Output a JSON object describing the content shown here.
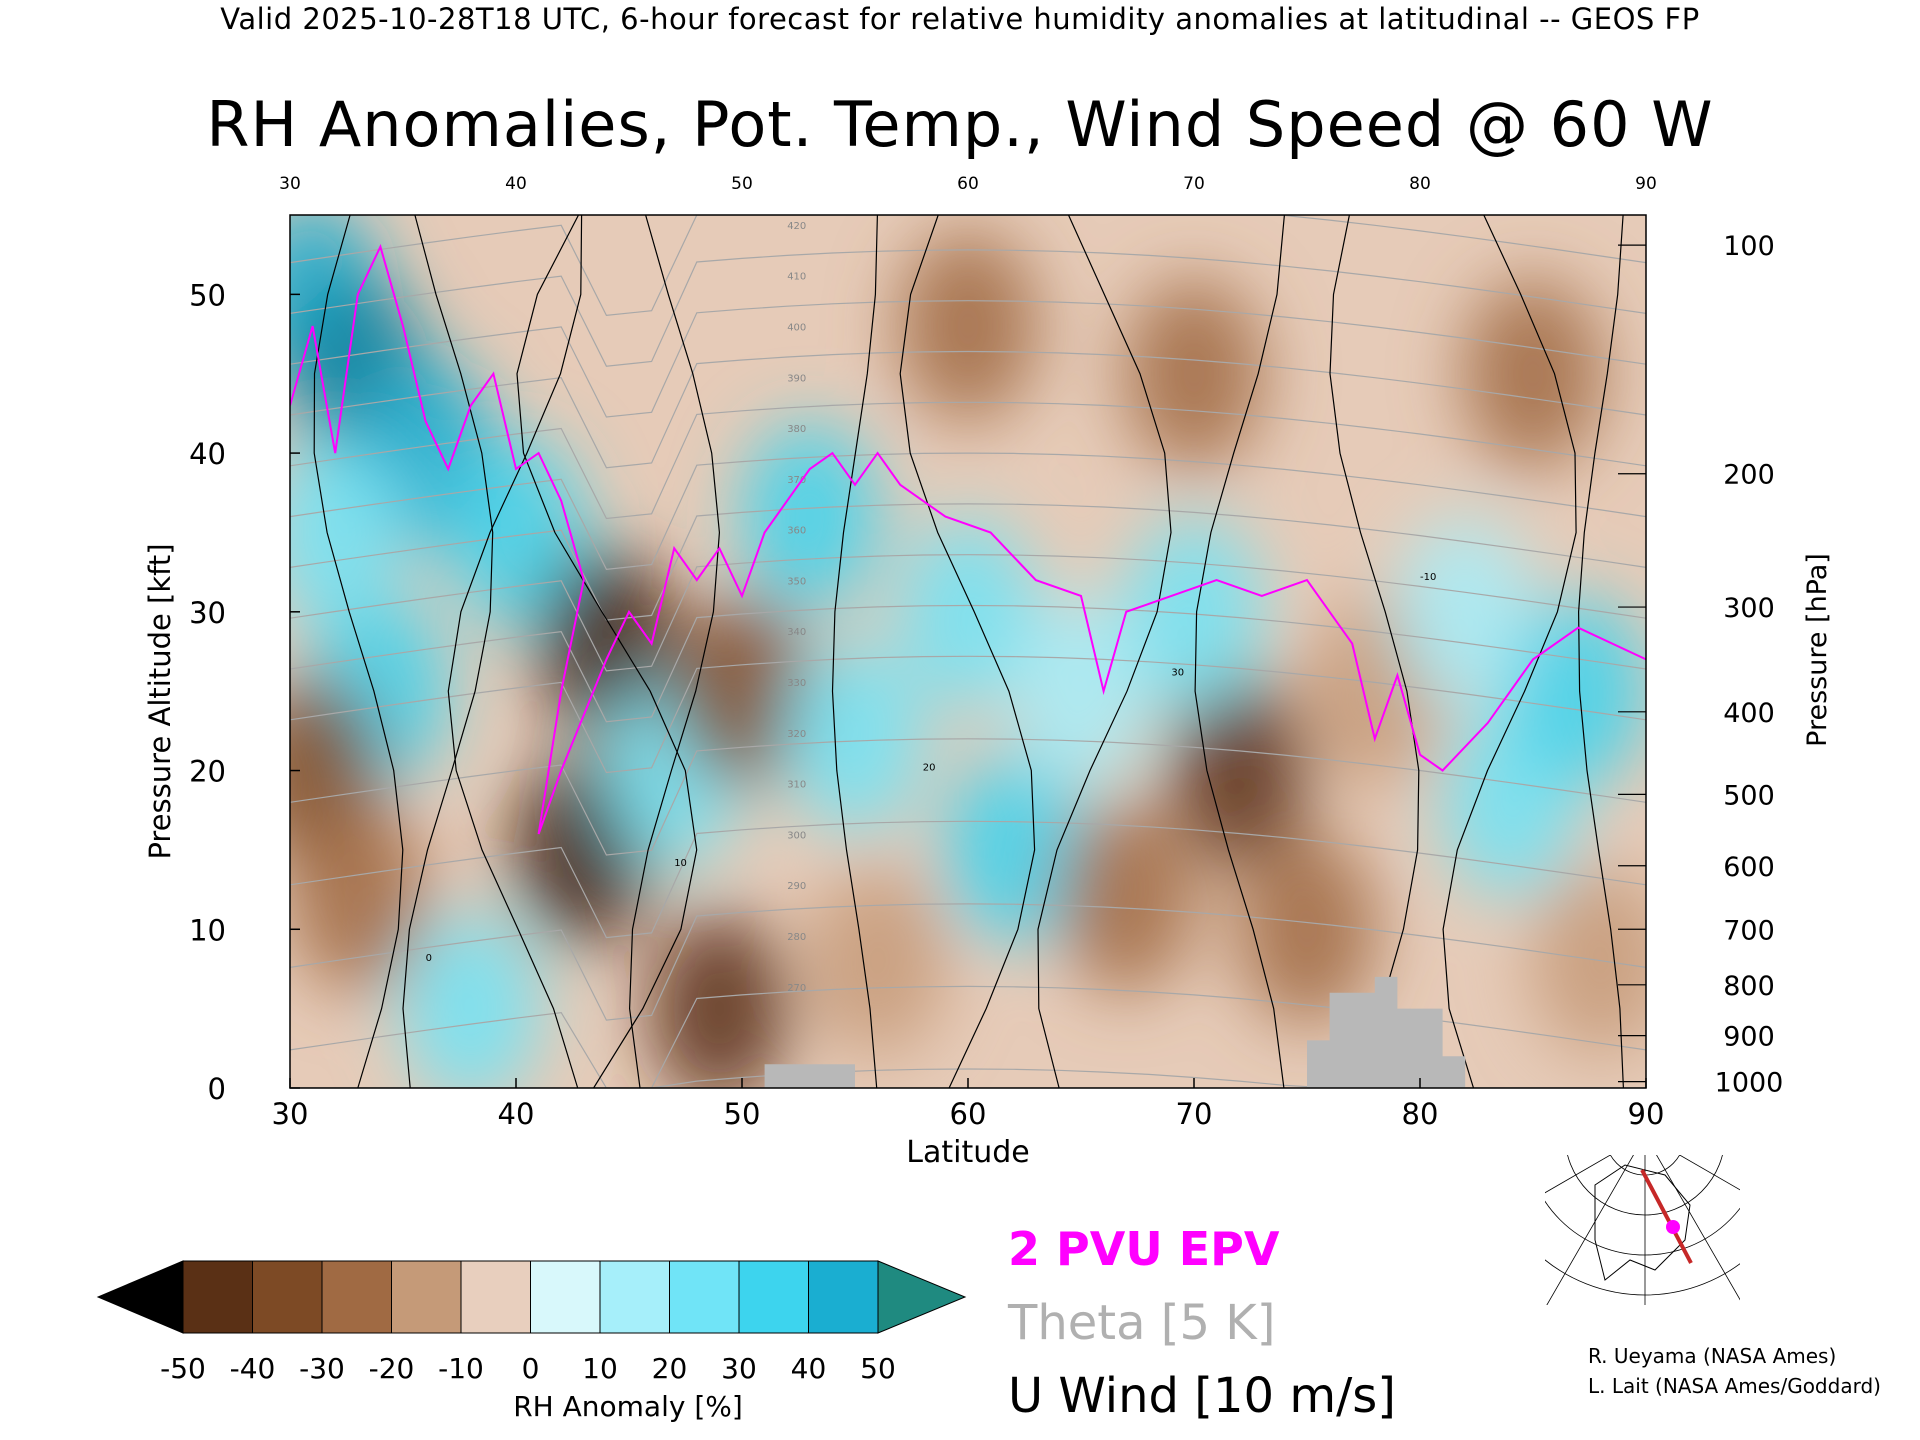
{
  "header": "Valid 2025-10-28T18 UTC, 6-hour forecast for relative humidity anomalies at latitudinal -- GEOS FP",
  "chart_data": {
    "type": "heatmap",
    "title": "RH Anomalies, Pot. Temp., Wind Speed @ 60 W",
    "xlabel": "Latitude",
    "ylabel": "Pressure Altitude [kft]",
    "y2label": "Pressure [hPa]",
    "xlim": [
      30,
      90
    ],
    "ylim": [
      0,
      55
    ],
    "x_ticks": [
      "30",
      "40",
      "50",
      "60",
      "70",
      "80",
      "90"
    ],
    "x_ticks_top": [
      "30",
      "40",
      "50",
      "60",
      "70",
      "80",
      "90"
    ],
    "y_ticks": [
      "0",
      "10",
      "20",
      "30",
      "40",
      "50"
    ],
    "pressure_ticks": [
      {
        "label": "100",
        "kft": 53.1
      },
      {
        "label": "200",
        "kft": 38.7
      },
      {
        "label": "300",
        "kft": 30.3
      },
      {
        "label": "400",
        "kft": 23.7
      },
      {
        "label": "500",
        "kft": 18.5
      },
      {
        "label": "600",
        "kft": 14.0
      },
      {
        "label": "700",
        "kft": 10.0
      },
      {
        "label": "800",
        "kft": 6.5
      },
      {
        "label": "900",
        "kft": 3.3
      },
      {
        "label": "1000",
        "kft": 0.4
      }
    ],
    "colorbar": {
      "label": "RH Anomaly [%]",
      "ticks": [
        "-50",
        "-40",
        "-30",
        "-20",
        "-10",
        "0",
        "10",
        "20",
        "30",
        "40",
        "50"
      ],
      "colors": [
        "#000000",
        "#3a1e0c",
        "#5a3015",
        "#7d4a25",
        "#a06a43",
        "#c59a78",
        "#e8cfbe",
        "#d8f8fb",
        "#a6effa",
        "#70e4f7",
        "#3dd4ee",
        "#1aaed1",
        "#0b7f9e",
        "#1f8a80"
      ]
    },
    "legend": [
      "2 PVU EPV",
      "Theta [5 K]",
      "U Wind [10 m/s]"
    ],
    "colors": {
      "epv": "#ff00ff",
      "theta": "#a8a8a8",
      "wind": "#000000",
      "terrain": "#b8b8b8"
    },
    "theta_labels": [
      "420",
      "410",
      "400",
      "390",
      "380",
      "370",
      "360",
      "350",
      "340",
      "330",
      "320",
      "310",
      "300",
      "290",
      "280",
      "270"
    ],
    "wind_labels": [
      "0",
      "10",
      "20",
      "30",
      "-10"
    ],
    "rh_field": [
      {
        "lat": 31,
        "kft": 50,
        "rh": 45
      },
      {
        "lat": 33,
        "kft": 45,
        "rh": 50
      },
      {
        "lat": 36,
        "kft": 40,
        "rh": 40
      },
      {
        "lat": 32,
        "kft": 35,
        "rh": 25
      },
      {
        "lat": 34,
        "kft": 25,
        "rh": 30
      },
      {
        "lat": 31,
        "kft": 20,
        "rh": -25
      },
      {
        "lat": 33,
        "kft": 12,
        "rh": -15
      },
      {
        "lat": 38,
        "kft": 5,
        "rh": 20
      },
      {
        "lat": 40,
        "kft": 35,
        "rh": 30
      },
      {
        "lat": 44,
        "kft": 28,
        "rh": -50
      },
      {
        "lat": 43,
        "kft": 15,
        "rh": -45
      },
      {
        "lat": 47,
        "kft": 20,
        "rh": 20
      },
      {
        "lat": 50,
        "kft": 25,
        "rh": -25
      },
      {
        "lat": 49,
        "kft": 5,
        "rh": -40
      },
      {
        "lat": 53,
        "kft": 36,
        "rh": 35
      },
      {
        "lat": 55,
        "kft": 22,
        "rh": 25
      },
      {
        "lat": 56,
        "kft": 8,
        "rh": -10
      },
      {
        "lat": 60,
        "kft": 30,
        "rh": 20
      },
      {
        "lat": 62,
        "kft": 15,
        "rh": 30
      },
      {
        "lat": 65,
        "kft": 25,
        "rh": 15
      },
      {
        "lat": 67,
        "kft": 12,
        "rh": -15
      },
      {
        "lat": 72,
        "kft": 20,
        "rh": -40
      },
      {
        "lat": 70,
        "kft": 30,
        "rh": 20
      },
      {
        "lat": 75,
        "kft": 10,
        "rh": -20
      },
      {
        "lat": 78,
        "kft": 25,
        "rh": -10
      },
      {
        "lat": 82,
        "kft": 30,
        "rh": 10
      },
      {
        "lat": 84,
        "kft": 18,
        "rh": 25
      },
      {
        "lat": 87,
        "kft": 25,
        "rh": 30
      },
      {
        "lat": 88,
        "kft": 8,
        "rh": -10
      },
      {
        "lat": 70,
        "kft": 45,
        "rh": -20
      },
      {
        "lat": 60,
        "kft": 48,
        "rh": -15
      },
      {
        "lat": 85,
        "kft": 45,
        "rh": -20
      }
    ],
    "epv_line": [
      [
        30,
        43
      ],
      [
        31,
        48
      ],
      [
        32,
        40
      ],
      [
        33,
        50
      ],
      [
        34,
        53
      ],
      [
        35,
        48
      ],
      [
        36,
        42
      ],
      [
        37,
        39
      ],
      [
        38,
        43
      ],
      [
        39,
        45
      ],
      [
        40,
        39
      ],
      [
        41,
        40
      ],
      [
        42,
        37
      ],
      [
        43,
        32
      ],
      [
        42,
        25
      ],
      [
        41,
        16
      ],
      [
        42,
        20
      ],
      [
        44,
        27
      ],
      [
        45,
        30
      ],
      [
        46,
        28
      ],
      [
        47,
        34
      ],
      [
        48,
        32
      ],
      [
        49,
        34
      ],
      [
        50,
        31
      ],
      [
        51,
        35
      ],
      [
        52,
        37
      ],
      [
        53,
        39
      ],
      [
        54,
        40
      ],
      [
        55,
        38
      ],
      [
        56,
        40
      ],
      [
        57,
        38
      ],
      [
        59,
        36
      ],
      [
        61,
        35
      ],
      [
        63,
        32
      ],
      [
        65,
        31
      ],
      [
        66,
        25
      ],
      [
        67,
        30
      ],
      [
        69,
        31
      ],
      [
        71,
        32
      ],
      [
        73,
        31
      ],
      [
        75,
        32
      ],
      [
        77,
        28
      ],
      [
        78,
        22
      ],
      [
        79,
        26
      ],
      [
        80,
        21
      ],
      [
        81,
        20
      ],
      [
        83,
        23
      ],
      [
        85,
        27
      ],
      [
        87,
        29
      ],
      [
        90,
        27
      ]
    ],
    "terrain": [
      [
        50,
        0
      ],
      [
        51,
        0
      ],
      [
        51,
        1.5
      ],
      [
        55,
        1.5
      ],
      [
        55,
        0
      ],
      [
        75,
        0
      ],
      [
        75,
        3
      ],
      [
        76,
        3
      ],
      [
        76,
        6
      ],
      [
        78,
        6
      ],
      [
        78,
        7
      ],
      [
        79,
        7
      ],
      [
        79,
        5
      ],
      [
        81,
        5
      ],
      [
        81,
        2
      ],
      [
        82,
        2
      ],
      [
        82,
        0
      ]
    ]
  },
  "credits": [
    "R. Ueyama (NASA Ames)",
    "L. Lait (NASA Ames/Goddard)"
  ]
}
